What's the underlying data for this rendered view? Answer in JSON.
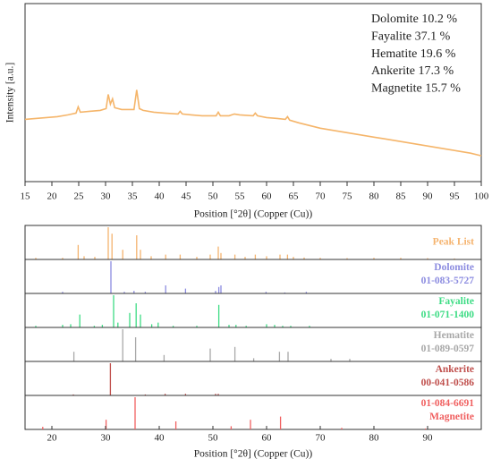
{
  "chart_data": [
    {
      "type": "line",
      "ylabel": "Intensity [a.u.]",
      "xlabel": "Position [°2θ] (Copper (Cu))",
      "xlim": [
        15,
        100
      ],
      "ylim": [
        0,
        100
      ],
      "xticks": [
        15,
        20,
        25,
        30,
        35,
        40,
        45,
        50,
        55,
        60,
        65,
        70,
        75,
        80,
        85,
        90,
        95,
        100
      ],
      "annotations": [
        "Dolomite 10.2 %",
        "Fayalite 37.1 %",
        "Hematite 19.6 %",
        "Ankerite 17.3 %",
        "Magnetite 15.7 %"
      ],
      "color": "#f5b56a",
      "x": [
        15,
        17,
        19,
        21,
        23,
        24.5,
        24.9,
        25.3,
        27,
        29,
        30.1,
        30.5,
        30.9,
        31.3,
        31.7,
        33,
        34,
        35.3,
        35.8,
        36.3,
        37,
        39,
        41,
        43.5,
        43.9,
        44.3,
        46,
        48,
        50.6,
        51,
        51.4,
        53,
        54,
        55,
        57.5,
        57.9,
        58.3,
        60,
        62,
        63.5,
        63.9,
        64.3,
        66,
        68,
        70,
        72,
        74,
        76,
        78,
        80,
        82,
        84,
        86,
        88,
        90,
        92,
        94,
        96,
        98,
        100
      ],
      "values": [
        35,
        35.5,
        36,
        36.5,
        37.5,
        38.5,
        42,
        39,
        39.5,
        40,
        41,
        49,
        43.5,
        46.5,
        41.5,
        40.5,
        40.5,
        40.5,
        51.5,
        41,
        40,
        39,
        38.5,
        38,
        39.5,
        38,
        37.5,
        37,
        37,
        39,
        37,
        37,
        38,
        37.5,
        37,
        38.5,
        37,
        36,
        35.5,
        35,
        36.5,
        34.5,
        33,
        31.5,
        30,
        29,
        28,
        27,
        26,
        25,
        24,
        23,
        22,
        21,
        20,
        19,
        18,
        17,
        16,
        14.5
      ]
    },
    {
      "type": "stick",
      "xlabel": "Position [°2θ] (Copper (Cu))",
      "xlim": [
        15,
        100
      ],
      "ylim": [
        0,
        100
      ],
      "xticks": [
        20,
        30,
        40,
        50,
        60,
        70,
        80,
        90
      ],
      "panels": [
        {
          "labels": [
            "Peak List"
          ],
          "color": "#f5b36e",
          "x": [
            17,
            22,
            24.9,
            26,
            28,
            30.5,
            31.2,
            33.2,
            35.8,
            36.5,
            38.5,
            41.2,
            43.9,
            47,
            49.5,
            51,
            51.5,
            54.1,
            56,
            57.9,
            60,
            62.5,
            63.9,
            65,
            67,
            70,
            75,
            80,
            85,
            90,
            95
          ],
          "values": [
            5,
            5,
            45,
            10,
            8,
            100,
            80,
            30,
            75,
            30,
            10,
            15,
            15,
            8,
            15,
            40,
            20,
            15,
            8,
            15,
            10,
            15,
            15,
            8,
            6,
            5,
            4,
            5,
            5,
            4,
            3
          ]
        },
        {
          "labels": [
            "Dolomite",
            "01-083-5727"
          ],
          "color": "#8c8ce0",
          "x": [
            22,
            31,
            33.5,
            35.3,
            37.4,
            41.2,
            44.9,
            50.5,
            51.1,
            51.5,
            59.9,
            63.4,
            67.4
          ],
          "values": [
            5,
            100,
            5,
            8,
            5,
            25,
            15,
            8,
            20,
            25,
            5,
            3,
            5
          ]
        },
        {
          "labels": [
            "Fayalite",
            "01-071-1400"
          ],
          "color": "#3ddc84",
          "x": [
            17,
            22,
            23.5,
            25.2,
            27.9,
            29.4,
            31.5,
            32.3,
            34.5,
            35.7,
            36.5,
            38.6,
            39.8,
            42.6,
            47,
            51.1,
            53,
            54.3,
            56.2,
            60,
            61.5,
            63,
            64.5,
            68
          ],
          "values": [
            5,
            8,
            10,
            40,
            5,
            8,
            100,
            15,
            45,
            75,
            40,
            10,
            15,
            5,
            5,
            70,
            8,
            8,
            5,
            10,
            8,
            5,
            5,
            5
          ]
        },
        {
          "labels": [
            "Hematite",
            "01-089-0597"
          ],
          "color": "#a8a8a8",
          "x": [
            24.1,
            33.2,
            35.6,
            40.9,
            49.5,
            54.1,
            57.6,
            62.4,
            64,
            72,
            75.5
          ],
          "values": [
            30,
            100,
            75,
            20,
            40,
            45,
            10,
            30,
            30,
            8,
            8
          ]
        },
        {
          "labels": [
            "Ankerite",
            "00-041-0586"
          ],
          "color": "#c0504d",
          "x": [
            24,
            30.9,
            37.4,
            41.1,
            44.9,
            50.5,
            51
          ],
          "values": [
            3,
            100,
            3,
            5,
            5,
            5,
            5
          ]
        },
        {
          "labels": [
            "01-084-6691",
            "Magnetite"
          ],
          "color": "#f06060",
          "x": [
            18.3,
            30.1,
            35.5,
            43.1,
            53.4,
            57,
            62.6,
            74,
            89.6
          ],
          "values": [
            8,
            30,
            100,
            25,
            10,
            30,
            40,
            5,
            3
          ]
        }
      ]
    }
  ]
}
